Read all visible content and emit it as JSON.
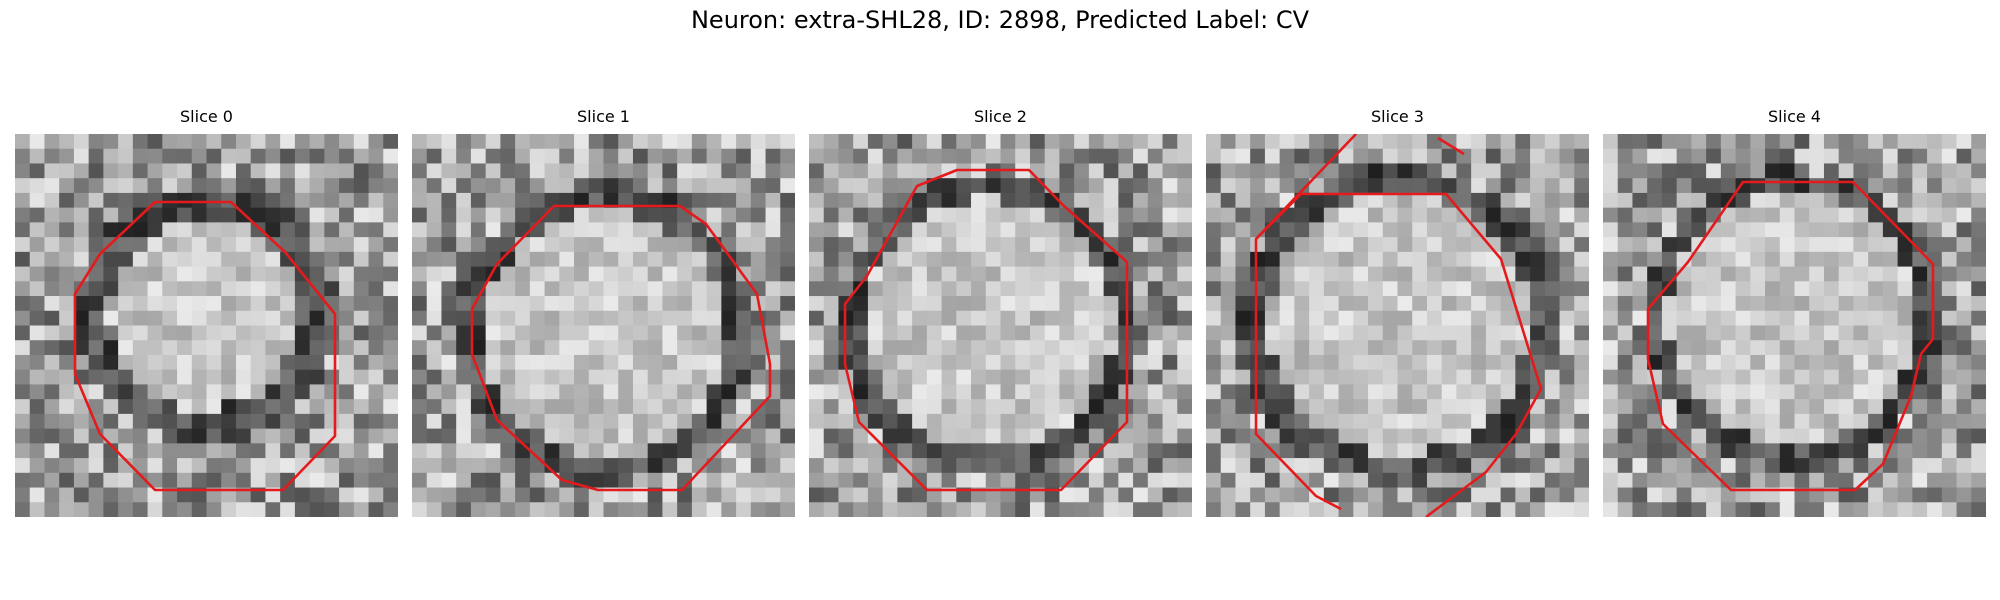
{
  "figure": {
    "title": "Neuron: extra-SHL28, ID: 2898, Predicted Label: CV"
  },
  "panels": [
    {
      "title": "Slice 0"
    },
    {
      "title": "Slice 1"
    },
    {
      "title": "Slice 2"
    },
    {
      "title": "Slice 3"
    },
    {
      "title": "Slice 4"
    }
  ],
  "colors": {
    "contour": "#e41a1c"
  }
}
